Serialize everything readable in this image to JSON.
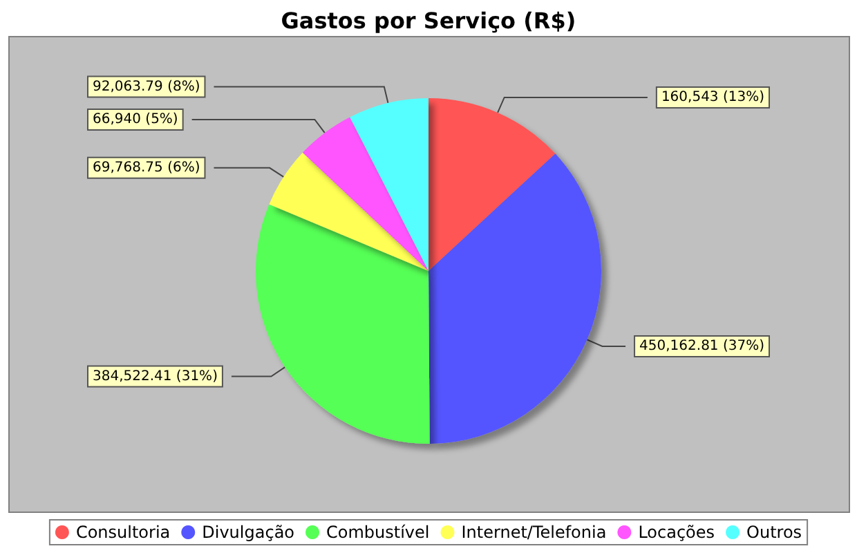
{
  "chart_data": {
    "type": "pie",
    "title": "Gastos por Serviço (R$)",
    "categories": [
      "Consultoria",
      "Divulgação",
      "Combustível",
      "Internet/Telefonia",
      "Locações",
      "Outros"
    ],
    "values": [
      160543,
      450162.81,
      384522.41,
      69768.75,
      66940,
      92063.79
    ],
    "colors": [
      "#ff5555",
      "#5555ff",
      "#55ff55",
      "#ffff55",
      "#ff55ff",
      "#55ffff"
    ],
    "value_labels": [
      "160,543 (13%)",
      "450,162.81 (37%)",
      "384,522.41 (31%)",
      "69,768.75 (6%)",
      "66,940 (5%)",
      "92,063.79 (8%)"
    ],
    "legend": "bottom"
  }
}
